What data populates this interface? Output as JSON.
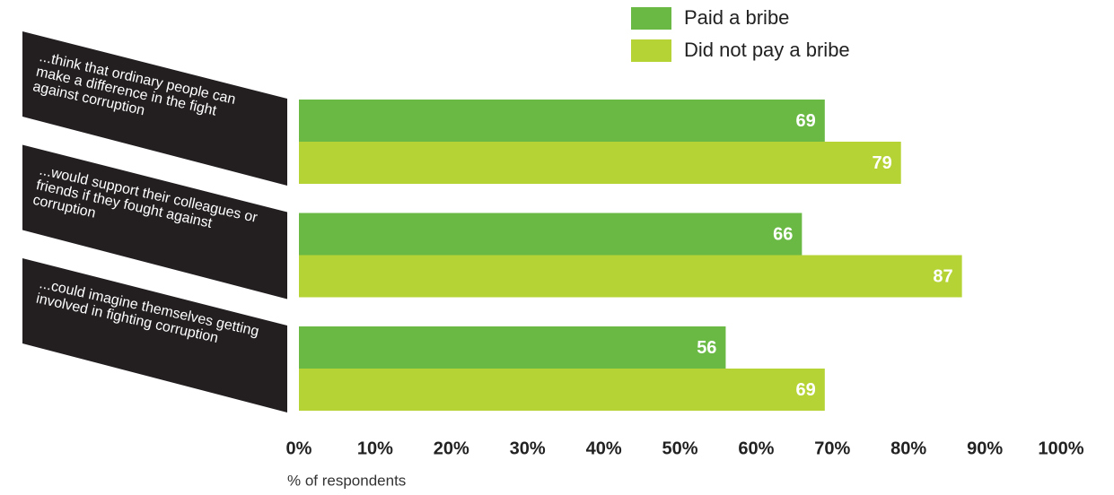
{
  "chart_data": {
    "type": "bar",
    "orientation": "horizontal",
    "categories": [
      "...think that ordinary people can make a difference in the fight against corruption",
      "...would support their colleagues or friends if they fought against corruption",
      "...could imagine themselves getting involved in fighting corruption"
    ],
    "series": [
      {
        "name": "Paid a bribe",
        "color": "#6ab945",
        "values": [
          69,
          66,
          56
        ]
      },
      {
        "name": "Did not pay a bribe",
        "color": "#b5d335",
        "values": [
          79,
          87,
          69
        ]
      }
    ],
    "xlim": [
      0,
      100
    ],
    "xticks": [
      {
        "value": 0,
        "label": "0%"
      },
      {
        "value": 10,
        "label": "10%"
      },
      {
        "value": 20,
        "label": "20%"
      },
      {
        "value": 30,
        "label": "30%"
      },
      {
        "value": 40,
        "label": "40%"
      },
      {
        "value": 50,
        "label": "50%"
      },
      {
        "value": 60,
        "label": "60%"
      },
      {
        "value": 70,
        "label": "70%"
      },
      {
        "value": 80,
        "label": "80%"
      },
      {
        "value": 90,
        "label": "90%"
      },
      {
        "value": 100,
        "label": "100%"
      }
    ],
    "xlabel": "% of respondents",
    "legend": "top-right"
  }
}
